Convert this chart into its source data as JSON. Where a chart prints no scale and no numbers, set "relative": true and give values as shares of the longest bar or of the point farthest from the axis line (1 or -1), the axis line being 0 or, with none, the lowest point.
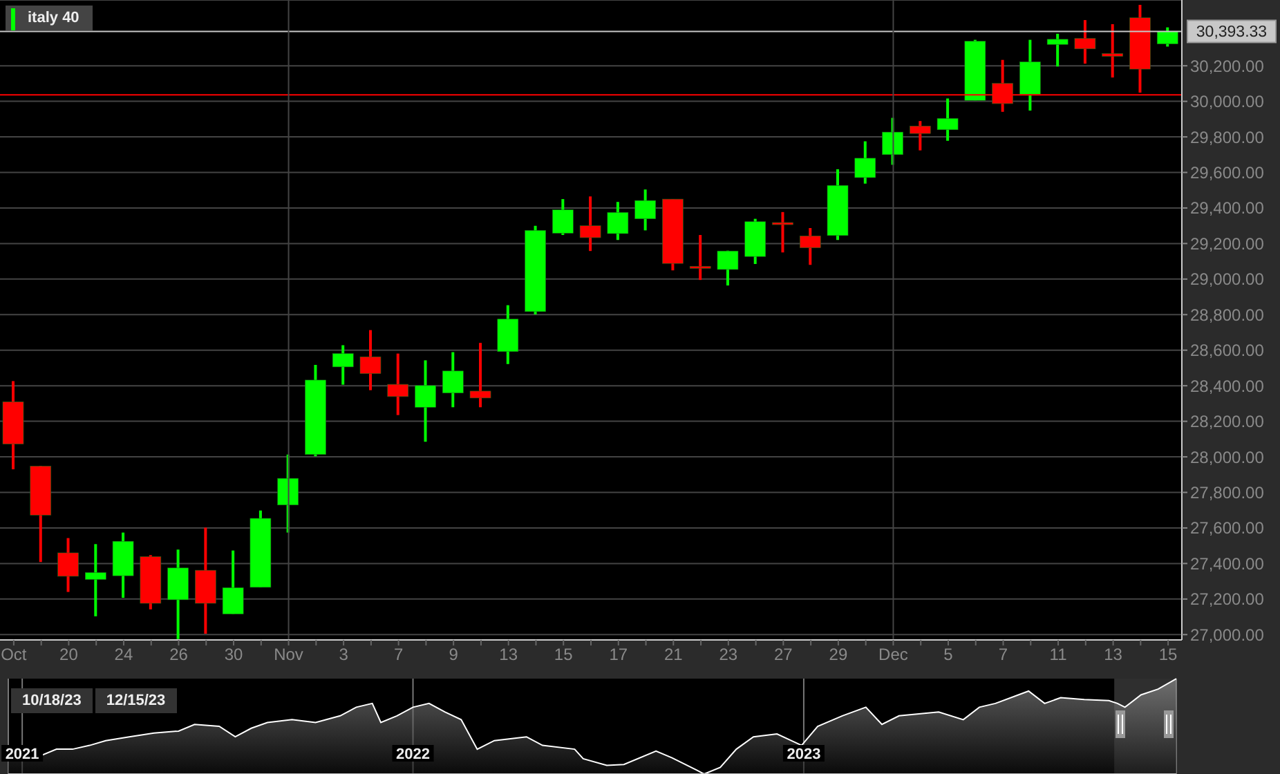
{
  "chart_data": [
    {
      "type": "candlestick",
      "categories": [
        "Oct",
        null,
        "20",
        null,
        "24",
        null,
        "26",
        null,
        "30",
        null,
        "Nov",
        null,
        "3",
        null,
        "7",
        null,
        "9",
        null,
        "13",
        null,
        "15",
        null,
        "17",
        null,
        "21",
        null,
        "23",
        null,
        "27",
        null,
        "29",
        null,
        "Dec",
        null,
        "5",
        null,
        "7",
        null,
        "11",
        null,
        "13",
        null,
        "15"
      ],
      "series": [
        {
          "name": "italy 40",
          "color": "#00ff00",
          "ohlc": [
            [
              28310,
              28426,
              27930,
              28072
            ],
            [
              27948,
              27950,
              27408,
              27672
            ],
            [
              27460,
              27543,
              27240,
              27328
            ],
            [
              27310,
              27509,
              27103,
              27349
            ],
            [
              27331,
              27574,
              27207,
              27525
            ],
            [
              27439,
              27447,
              27142,
              27176
            ],
            [
              27196,
              27478,
              26975,
              27375
            ],
            [
              27362,
              27602,
              27005,
              27176
            ],
            [
              27116,
              27473,
              27116,
              27264
            ],
            [
              27266,
              27698,
              27266,
              27654
            ],
            [
              27729,
              28013,
              27574,
              27879
            ],
            [
              28013,
              28517,
              28003,
              28432
            ],
            [
              28506,
              28628,
              28406,
              28581
            ],
            [
              28563,
              28713,
              28375,
              28468
            ],
            [
              28408,
              28581,
              28235,
              28339
            ],
            [
              28279,
              28543,
              28085,
              28401
            ],
            [
              28359,
              28589,
              28279,
              28483
            ],
            [
              28370,
              28641,
              28279,
              28331
            ],
            [
              28592,
              28853,
              28522,
              28775
            ],
            [
              28817,
              29300,
              28801,
              29274
            ],
            [
              29258,
              29450,
              29248,
              29390
            ],
            [
              29300,
              29465,
              29158,
              29233
            ],
            [
              29256,
              29434,
              29220,
              29375
            ],
            [
              29339,
              29504,
              29274,
              29442
            ],
            [
              29450,
              29450,
              29049,
              29088
            ],
            [
              29072,
              29248,
              28995,
              29067
            ],
            [
              29054,
              29160,
              28964,
              29158
            ],
            [
              29127,
              29339,
              29085,
              29323
            ],
            [
              29318,
              29377,
              29150,
              29313
            ],
            [
              29243,
              29287,
              29080,
              29176
            ],
            [
              29245,
              29618,
              29220,
              29527
            ],
            [
              29571,
              29775,
              29537,
              29680
            ],
            [
              29700,
              29907,
              29643,
              29827
            ],
            [
              29861,
              29889,
              29724,
              29819
            ],
            [
              29840,
              30016,
              29778,
              29904
            ],
            [
              30005,
              30346,
              30005,
              30338
            ],
            [
              30101,
              30233,
              29941,
              29987
            ],
            [
              30039,
              30346,
              29948,
              30222
            ],
            [
              30320,
              30380,
              30196,
              30349
            ],
            [
              30354,
              30457,
              30212,
              30295
            ],
            [
              30269,
              30434,
              30134,
              30253
            ],
            [
              30470,
              30543,
              30049,
              30181
            ],
            [
              30323,
              30416,
              30308,
              30393
            ]
          ],
          "colors": [
            "#ff0000",
            "#ff0000",
            "#ff0000",
            "#00ff00",
            "#00ff00",
            "#ff0000",
            "#00ff00",
            "#ff0000",
            "#00ff00",
            "#00ff00",
            "#00ff00",
            "#00ff00",
            "#00ff00",
            "#ff0000",
            "#ff0000",
            "#00ff00",
            "#00ff00",
            "#ff0000",
            "#00ff00",
            "#00ff00",
            "#00ff00",
            "#ff0000",
            "#00ff00",
            "#00ff00",
            "#ff0000",
            "#ff0000",
            "#00ff00",
            "#00ff00",
            "#ff0000",
            "#ff0000",
            "#00ff00",
            "#00ff00",
            "#00ff00",
            "#ff0000",
            "#00ff00",
            "#00ff00",
            "#ff0000",
            "#00ff00",
            "#00ff00",
            "#ff0000",
            "#ff0000",
            "#ff0000",
            "#00ff00"
          ]
        }
      ],
      "ylim": [
        26970,
        30570
      ],
      "yticks": [
        {
          "value": 27000,
          "label": "27,000.00"
        },
        {
          "value": 27200,
          "label": "27,200.00"
        },
        {
          "value": 27400,
          "label": "27,400.00"
        },
        {
          "value": 27600,
          "label": "27,600.00"
        },
        {
          "value": 27800,
          "label": "27,800.00"
        },
        {
          "value": 28000,
          "label": "28,000.00"
        },
        {
          "value": 28200,
          "label": "28,200.00"
        },
        {
          "value": 28400,
          "label": "28,400.00"
        },
        {
          "value": 28600,
          "label": "28,600.00"
        },
        {
          "value": 28800,
          "label": "28,800.00"
        },
        {
          "value": 29000,
          "label": "29,000.00"
        },
        {
          "value": 29200,
          "label": "29,200.00"
        },
        {
          "value": 29400,
          "label": "29,400.00"
        },
        {
          "value": 29600,
          "label": "29,600.00"
        },
        {
          "value": 29800,
          "label": "29,800.00"
        },
        {
          "value": 30000,
          "label": "30,000.00"
        },
        {
          "value": 30200,
          "label": "30,200.00"
        }
      ],
      "ref_lines": [
        {
          "axis": "y",
          "value": 30393.33,
          "label": "30,393.33",
          "color": "#c8c8c8"
        },
        {
          "axis": "y",
          "value": 30036,
          "label": null,
          "color": "#ff0000"
        },
        {
          "axis": "x",
          "value": "Nov",
          "label": null,
          "color": "#444444"
        },
        {
          "axis": "x",
          "value": "Dec",
          "label": null,
          "color": "#444444"
        }
      ],
      "grid": "y",
      "legend": "top left"
    },
    {
      "type": "area",
      "relative": true,
      "x": [
        "2020-12-19",
        "2021-01-03",
        "2021-01-18",
        "2021-02-02",
        "2021-02-17",
        "2021-03-05",
        "2021-03-20",
        "2021-04-11",
        "2021-05-04",
        "2021-05-27",
        "2021-06-11",
        "2021-07-04",
        "2021-07-19",
        "2021-08-03",
        "2021-08-18",
        "2021-09-10",
        "2021-10-02",
        "2021-10-25",
        "2021-11-09",
        "2021-11-24",
        "2021-12-02",
        "2021-12-17",
        "2022-01-01",
        "2022-01-16",
        "2022-01-31",
        "2022-02-15",
        "2022-03-02",
        "2022-03-18",
        "2022-04-17",
        "2022-05-02",
        "2022-06-01",
        "2022-06-09",
        "2022-07-01",
        "2022-07-17",
        "2022-08-16",
        "2022-08-31",
        "2022-09-23",
        "2022-09-30",
        "2022-10-15",
        "2022-10-30",
        "2022-11-15",
        "2022-12-07",
        "2022-12-30",
        "2023-01-14",
        "2023-02-06",
        "2023-02-28",
        "2023-03-15",
        "2023-03-31",
        "2023-05-07",
        "2023-05-30",
        "2023-06-14",
        "2023-06-29",
        "2023-07-30",
        "2023-08-14",
        "2023-08-29",
        "2023-09-20",
        "2023-10-13",
        "2023-10-21",
        "2023-10-28",
        "2023-11-12",
        "2023-11-28",
        "2023-12-15"
      ],
      "series": [
        {
          "color": "#ffffff",
          "values": [
            0.22,
            0.23,
            0.19,
            0.26,
            0.26,
            0.3,
            0.35,
            0.39,
            0.43,
            0.45,
            0.52,
            0.5,
            0.39,
            0.48,
            0.54,
            0.57,
            0.54,
            0.61,
            0.7,
            0.74,
            0.54,
            0.61,
            0.7,
            0.74,
            0.65,
            0.57,
            0.26,
            0.35,
            0.39,
            0.3,
            0.26,
            0.16,
            0.09,
            0.1,
            0.24,
            0.17,
            0.04,
            0,
            0.07,
            0.26,
            0.39,
            0.42,
            0.3,
            0.5,
            0.61,
            0.7,
            0.52,
            0.61,
            0.65,
            0.57,
            0.7,
            0.74,
            0.87,
            0.74,
            0.8,
            0.78,
            0.77,
            0.74,
            0.7,
            0.83,
            0.89,
            1
          ]
        }
      ],
      "xlim": [
        "2020-12-19",
        "2023-12-15"
      ],
      "xticks": [
        {
          "value": "2021-01-01",
          "label": "2021"
        },
        {
          "value": "2022-01-01",
          "label": "2022"
        },
        {
          "value": "2023-01-01",
          "label": "2023"
        }
      ],
      "bands": [
        {
          "axis": "x",
          "from": "2023-10-18",
          "to": "2023-12-15",
          "color": "#888888"
        }
      ],
      "annotations": [
        "10/18/23",
        "12/15/23"
      ],
      "grid": "x"
    }
  ]
}
